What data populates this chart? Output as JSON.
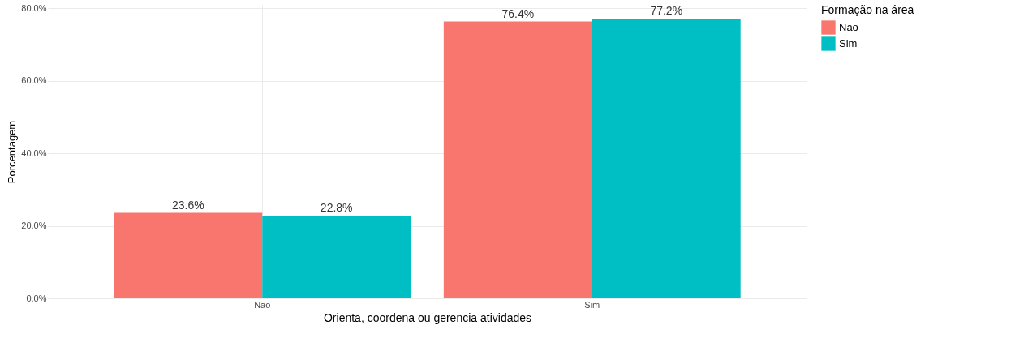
{
  "chart_data": {
    "type": "bar",
    "xlabel": "Orienta, coordena ou gerencia atividades",
    "ylabel": "Porcentagem",
    "legend_title": "Formação na área",
    "categories": [
      "Não",
      "Sim"
    ],
    "series": [
      {
        "name": "Não",
        "color": "#f8766d",
        "values": [
          23.6,
          76.4
        ],
        "value_labels": [
          "23.6%",
          "76.4%"
        ]
      },
      {
        "name": "Sim",
        "color": "#00bfc4",
        "values": [
          22.8,
          77.2
        ],
        "value_labels": [
          "22.8%",
          "77.2%"
        ]
      }
    ],
    "ylim": [
      0,
      81
    ],
    "yticks": [
      {
        "value": 0,
        "label": "0.0%"
      },
      {
        "value": 20,
        "label": "20.0%"
      },
      {
        "value": 40,
        "label": "40.0%"
      },
      {
        "value": 60,
        "label": "60.0%"
      },
      {
        "value": 80,
        "label": "80.0%"
      }
    ],
    "grid": true,
    "legend": "right"
  }
}
